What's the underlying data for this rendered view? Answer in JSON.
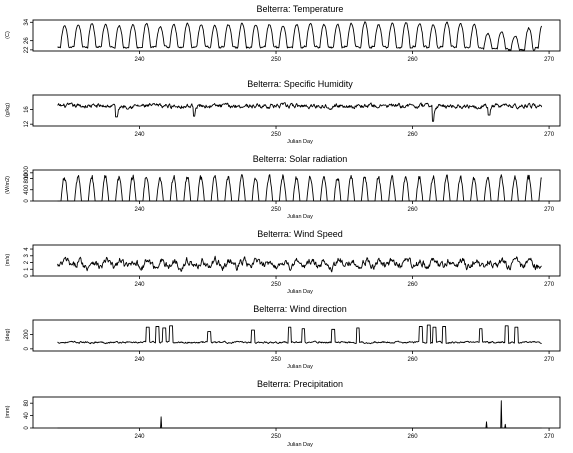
{
  "chart_data": [
    {
      "type": "line",
      "title": "Belterra: Temperature",
      "xlabel": "",
      "ylabel": "(C)",
      "xlim": [
        232.2,
        270.8
      ],
      "ylim": [
        21.5,
        35
      ],
      "xticks": [
        240,
        250,
        260,
        270
      ],
      "yticks": [
        22,
        26,
        34
      ],
      "series": [
        {
          "x_start": 234.0,
          "x_end": 269.5,
          "pattern": "diurnal",
          "daily_min": [
            23.0,
            23.5,
            23.0,
            23.5,
            23.0,
            23.0,
            23.2,
            23.5,
            23.0,
            23.0,
            23.5,
            23.0,
            23.5,
            23.0,
            23.0,
            23.5,
            23.0,
            23.0,
            23.5,
            23.0,
            23.0,
            23.5,
            23.0,
            23.5,
            23.0,
            23.0,
            23.5,
            23.0,
            23.5,
            23.0,
            23.0,
            22.5,
            22.5,
            22.0,
            22.0,
            23.0
          ],
          "daily_max": [
            32.5,
            33.0,
            33.5,
            33.0,
            32.5,
            33.0,
            33.5,
            32.0,
            33.0,
            33.5,
            33.0,
            32.5,
            33.0,
            33.5,
            33.0,
            33.0,
            32.5,
            33.0,
            33.5,
            33.0,
            33.0,
            33.5,
            34.0,
            33.0,
            33.5,
            34.0,
            33.5,
            33.0,
            34.0,
            33.5,
            33.0,
            29.0,
            30.0,
            28.0,
            31.5,
            33.0
          ]
        }
      ]
    },
    {
      "type": "line",
      "title": "Belterra: Specific Humidity",
      "xlabel": "Julian Day",
      "ylabel": "(g/kg)",
      "xlim": [
        232.2,
        270.8
      ],
      "ylim": [
        11.5,
        20
      ],
      "xticks": [
        240,
        250,
        260,
        270
      ],
      "yticks": [
        12,
        16
      ],
      "series": [
        {
          "x_start": 234.0,
          "x_end": 269.5,
          "pattern": "noisy",
          "mean": 17.0,
          "amplitude": 1.2,
          "dips": [
            [
              238.3,
              14.0
            ],
            [
              244.0,
              14.2
            ],
            [
              261.5,
              12.8
            ],
            [
              265.6,
              14.5
            ]
          ]
        }
      ]
    },
    {
      "type": "line",
      "title": "Belterra: Solar radiation",
      "xlabel": "Julian Day",
      "ylabel": "(W/m2)",
      "xlim": [
        232.2,
        270.8
      ],
      "ylim": [
        0,
        1100
      ],
      "xticks": [
        240,
        250,
        260,
        270
      ],
      "yticks": [
        0,
        400,
        800,
        1000
      ],
      "series": [
        {
          "x_start": 234.0,
          "x_end": 269.5,
          "pattern": "daylight",
          "daily_peak": [
            940,
            960,
            950,
            970,
            930,
            960,
            950,
            900,
            940,
            960,
            950,
            970,
            920,
            960,
            950,
            970,
            960,
            940,
            950,
            960,
            930,
            950,
            960,
            940,
            960,
            950,
            920,
            940,
            960,
            930,
            880,
            900,
            940,
            920,
            960,
            950
          ]
        }
      ]
    },
    {
      "type": "line",
      "title": "Belterra: Wind Speed",
      "xlabel": "Julian Day",
      "ylabel": "(m/s)",
      "xlim": [
        232.2,
        270.8
      ],
      "ylim": [
        0,
        4.6
      ],
      "xticks": [
        240,
        250,
        260,
        270
      ],
      "yticks": [
        0,
        1,
        2,
        3,
        4
      ],
      "series": [
        {
          "x_start": 234.0,
          "x_end": 269.5,
          "pattern": "noisy-diurnal",
          "mean": 1.8,
          "amplitude": 1.1
        }
      ]
    },
    {
      "type": "line",
      "title": "Belterra: Wind direction",
      "xlabel": "Julian Day",
      "ylabel": "(deg)",
      "xlim": [
        232.2,
        270.8
      ],
      "ylim": [
        -30,
        400
      ],
      "xticks": [
        240,
        250,
        260,
        270
      ],
      "yticks": [
        0,
        200
      ],
      "series": [
        {
          "x_start": 234.0,
          "x_end": 269.5,
          "pattern": "noisy-spikes",
          "mean": 90,
          "amplitude": 25,
          "spikes": [
            [
              240.6,
              300
            ],
            [
              241.3,
              310
            ],
            [
              241.8,
              290
            ],
            [
              242.3,
              320
            ],
            [
              245.1,
              240
            ],
            [
              248.3,
              260
            ],
            [
              251.0,
              300
            ],
            [
              252.0,
              280
            ],
            [
              254.2,
              270
            ],
            [
              256.0,
              290
            ],
            [
              260.6,
              310
            ],
            [
              261.2,
              330
            ],
            [
              261.6,
              300
            ],
            [
              262.3,
              310
            ],
            [
              265.0,
              280
            ],
            [
              266.9,
              320
            ],
            [
              267.6,
              300
            ]
          ]
        }
      ]
    },
    {
      "type": "line",
      "title": "Belterra: Precipitation",
      "xlabel": "Julian Day",
      "ylabel": "(mm)",
      "xlim": [
        232.2,
        270.8
      ],
      "ylim": [
        0,
        100
      ],
      "xticks": [
        240,
        250,
        260,
        270
      ],
      "yticks": [
        0,
        40,
        80
      ],
      "series": [
        {
          "x_start": 234.0,
          "x_end": 269.5,
          "pattern": "events",
          "events": [
            [
              241.6,
              36
            ],
            [
              265.4,
              20
            ],
            [
              266.5,
              88
            ],
            [
              266.8,
              12
            ]
          ]
        }
      ]
    }
  ]
}
